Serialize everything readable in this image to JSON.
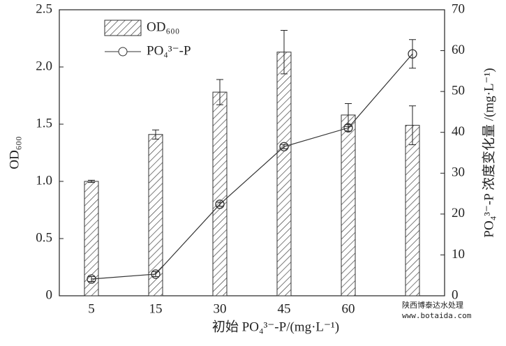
{
  "chart_data": {
    "type": "bar_line",
    "categories": [
      "5",
      "15",
      "30",
      "45",
      "60",
      null
    ],
    "x_label": "初始 PO₄³⁻-P/(mg·L⁻¹)",
    "y_label": "OD₆₀₀",
    "y2_label": "PO₄³⁻-P 浓度变化量 /(mg·L⁻¹)",
    "ylim": [
      0,
      2.5
    ],
    "yticks": [
      0,
      0.5,
      {
        "value": 1,
        "label": "1.0"
      },
      1.5,
      {
        "value": 2,
        "label": "2.0"
      },
      2.5
    ],
    "y2lim": [
      0,
      70
    ],
    "y2ticks": [
      0,
      10,
      20,
      30,
      40,
      50,
      60,
      70
    ],
    "series": [
      {
        "name": "OD₆₀₀",
        "type": "bar",
        "color": "#333333",
        "values": [
          1.0,
          1.41,
          1.78,
          2.13,
          1.58,
          1.49
        ],
        "errors": [
          0.01,
          0.04,
          0.11,
          0.19,
          0.1,
          0.17
        ]
      },
      {
        "name": "PO₄³⁻-P",
        "type": "line",
        "axis": "y2",
        "color": "#333333",
        "values": [
          4.1,
          5.3,
          22.4,
          36.5,
          41.1,
          59.2
        ],
        "errors": [
          0.6,
          0.6,
          0.5,
          0.5,
          0.8,
          3.5
        ]
      }
    ],
    "legend": "upper left",
    "watermark": [
      "陕西博泰达水处理",
      "www.botaida.com"
    ]
  }
}
